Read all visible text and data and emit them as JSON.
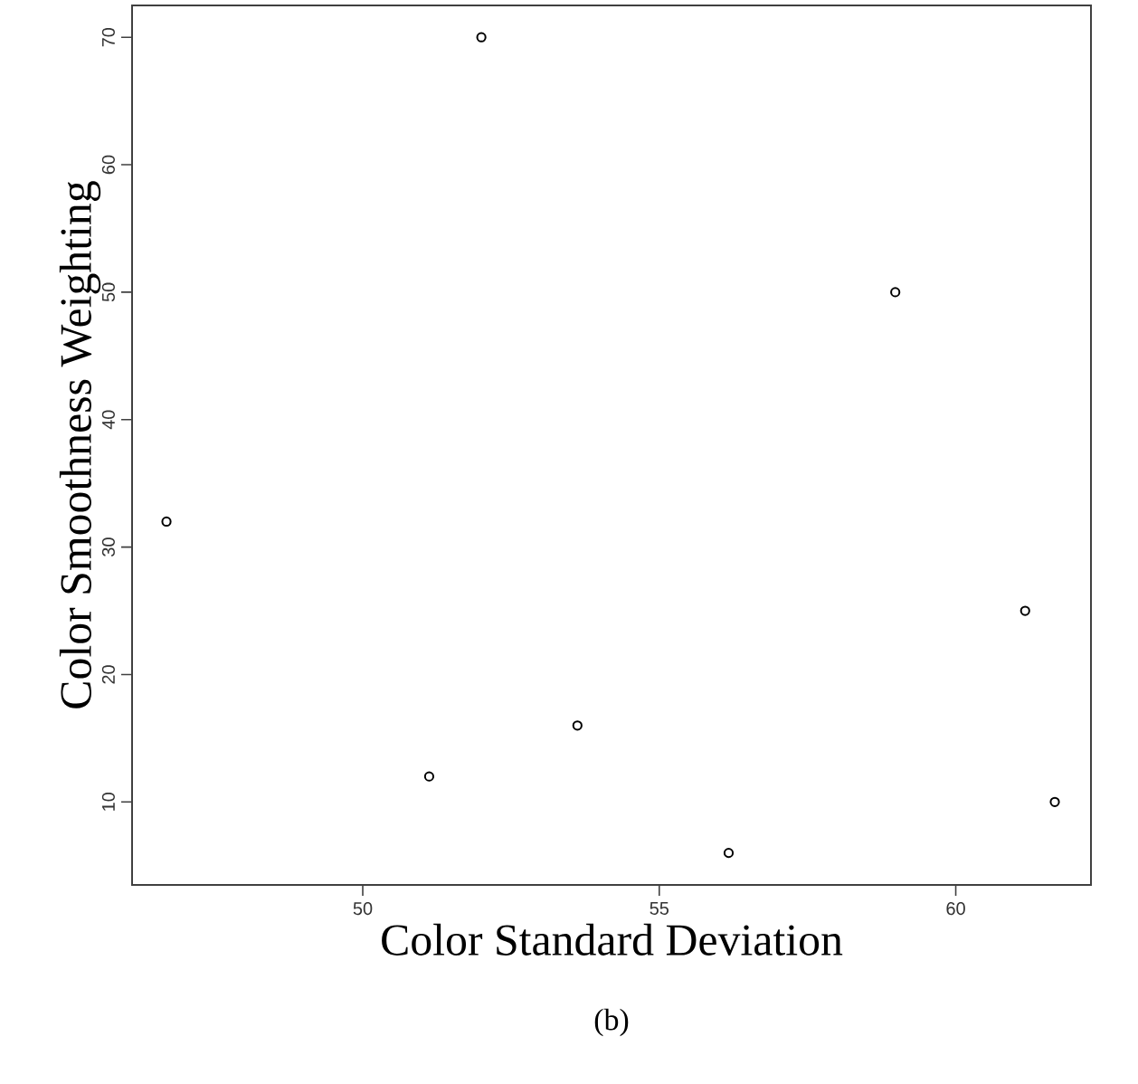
{
  "chart_data": {
    "type": "scatter",
    "xlabel": "Color Standard Deviation",
    "ylabel": "Color Smoothness Weighting",
    "x": [
      46.69,
      51.12,
      52.0,
      53.62,
      56.17,
      58.98,
      61.17,
      61.67
    ],
    "values": [
      32,
      12,
      70,
      16,
      6,
      50,
      25,
      10
    ],
    "color": "#000000",
    "marker": "circle",
    "grid": false,
    "xlim": [
      46.11,
      62.28
    ],
    "ylim": [
      3.49,
      72.5
    ],
    "xticks": [
      50,
      55,
      60
    ],
    "yticks": [
      10,
      20,
      30,
      40,
      50,
      60,
      70
    ],
    "annotations": [
      "(b)"
    ]
  }
}
